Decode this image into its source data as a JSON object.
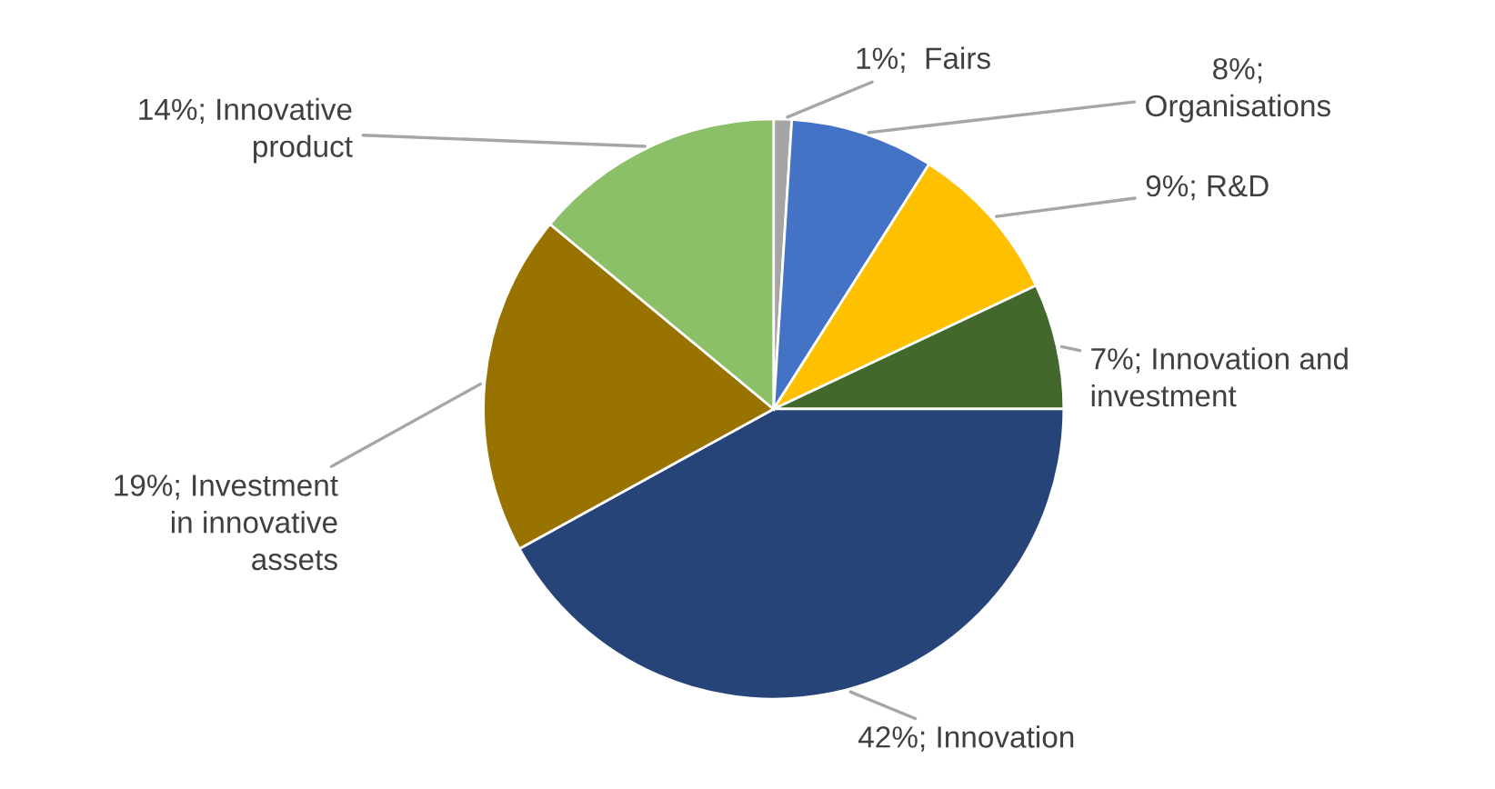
{
  "chart_data": {
    "type": "pie",
    "categories": [
      "1%;  Fairs",
      "8%;\nOrganisations",
      "9%; R&D",
      "7%; Innovation and\ninvestment",
      "42%; Innovation",
      "19%; Investment\nin innovative\nassets",
      "14%; Innovative\nproduct"
    ],
    "values": [
      1,
      8,
      9,
      7,
      42,
      19,
      14
    ],
    "colors": [
      "#a5a5a5",
      "#4472c4",
      "#ffc000",
      "#43682b",
      "#264478",
      "#997300",
      "#8cc068"
    ]
  }
}
